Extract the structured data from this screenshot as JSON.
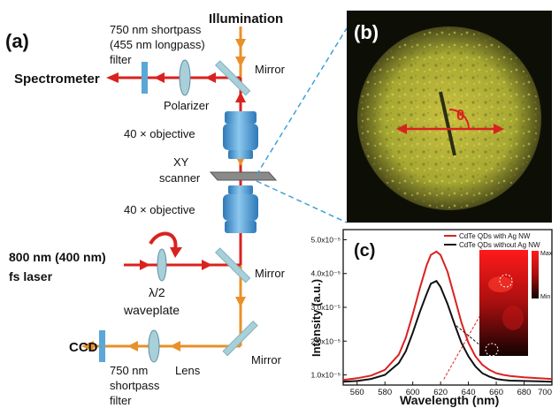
{
  "panels": {
    "a": "(a)",
    "b": "(b)",
    "c": "(c)"
  },
  "setup": {
    "illumination": "Illumination",
    "filter_top": [
      "750 nm shortpass",
      "(455 nm longpass)",
      "filter"
    ],
    "spectrometer": "Spectrometer",
    "mirror_top": "Mirror",
    "polarizer": "Polarizer",
    "objective_top": "40 × objective",
    "xy_scanner": [
      "XY",
      "scanner"
    ],
    "objective_bottom": "40 × objective",
    "laser": [
      "800 nm (400 nm)",
      "fs laser"
    ],
    "mirror_mid": "Mirror",
    "waveplate_symbol": "λ/2",
    "waveplate": "waveplate",
    "ccd": "CCD",
    "lens": "Lens",
    "mirror_bottom": "Mirror",
    "filter_bottom": [
      "750 nm",
      "shortpass",
      "filter"
    ]
  },
  "image_panel": {
    "angle_label": "θ"
  },
  "colors": {
    "beam_orange": "#e8902a",
    "beam_red": "#d9221f",
    "optic_blue": "#5ba7d6",
    "mirror": "#a9cfd9",
    "cyan_dashed": "#3fa0d8",
    "with_ag": "#d9221f",
    "without_ag": "#111111"
  },
  "chart_data": {
    "type": "line",
    "xlabel": "Wavelength (nm)",
    "ylabel": "Intensity (a.u.)",
    "xlim": [
      550,
      700
    ],
    "ylim": [
      7e-06,
      5.3e-05
    ],
    "x_ticks": [
      560,
      580,
      600,
      620,
      640,
      660,
      680,
      700
    ],
    "x_tick_labels": [
      "560",
      "580",
      "600",
      "620",
      "640",
      "660",
      "680",
      "700"
    ],
    "y_ticks": [
      1e-05,
      2e-05,
      3e-05,
      4e-05,
      5e-05
    ],
    "y_tick_labels": [
      "1.0x10⁻⁵",
      "2.0x10⁻⁵",
      "3.0x10⁻⁵",
      "4.0x10⁻⁵",
      "5.0x10⁻⁵"
    ],
    "legend_position": "top-right",
    "series": [
      {
        "name": "CdTe QDs with Ag NW",
        "color": "#d9221f",
        "x": [
          550,
          560,
          570,
          580,
          590,
          595,
          600,
          605,
          610,
          613,
          617,
          620,
          625,
          630,
          635,
          640,
          645,
          650,
          655,
          660,
          665,
          670,
          680,
          690,
          700
        ],
        "y": [
          8.5e-06,
          9e-06,
          9.8e-06,
          1.15e-05,
          1.6e-05,
          2.1e-05,
          2.8e-05,
          3.55e-05,
          4.25e-05,
          4.55e-05,
          4.65e-05,
          4.55e-05,
          4.05e-05,
          3.3e-05,
          2.55e-05,
          1.95e-05,
          1.55e-05,
          1.3e-05,
          1.15e-05,
          1.05e-05,
          1e-05,
          9.7e-06,
          9.3e-06,
          9e-06,
          8.8e-06
        ]
      },
      {
        "name": "CdTe QDs without Ag NW",
        "color": "#111111",
        "x": [
          550,
          560,
          570,
          580,
          590,
          595,
          600,
          605,
          610,
          613,
          617,
          620,
          625,
          630,
          635,
          640,
          645,
          650,
          655,
          660,
          665,
          670,
          680,
          690,
          700
        ],
        "y": [
          8e-06,
          8.2e-06,
          8.8e-06,
          1e-05,
          1.35e-05,
          1.7e-05,
          2.25e-05,
          2.85e-05,
          3.4e-05,
          3.7e-05,
          3.78e-05,
          3.6e-05,
          3.1e-05,
          2.5e-05,
          1.95e-05,
          1.55e-05,
          1.25e-05,
          1.05e-05,
          9.5e-06,
          8.8e-06,
          8.5e-06,
          8.3e-06,
          8.2e-06,
          8.1e-06,
          8e-06
        ]
      }
    ],
    "inset": {
      "max_label": "Max",
      "min_label": "Min"
    }
  }
}
